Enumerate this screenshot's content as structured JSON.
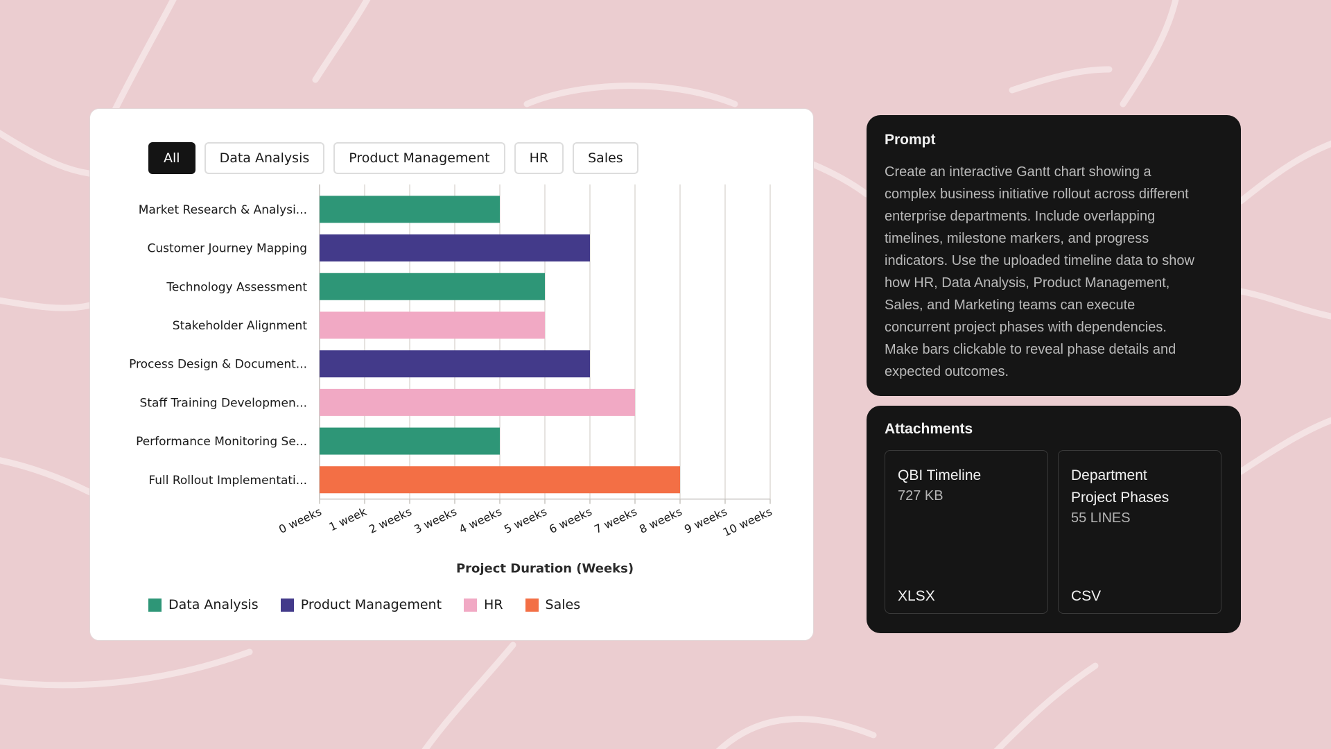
{
  "filters": [
    "All",
    "Data Analysis",
    "Product Management",
    "HR",
    "Sales"
  ],
  "colors": {
    "Data Analysis": "#2e9677",
    "Product Management": "#433a8a",
    "HR": "#f1a9c4",
    "Sales": "#f36f45"
  },
  "chart_data": {
    "type": "bar",
    "orientation": "horizontal",
    "title": "",
    "xlabel": "Project Duration (Weeks)",
    "ylabel": "",
    "xlim": [
      0,
      10
    ],
    "grid": true,
    "legend_position": "bottom-left",
    "x_ticks": [
      "0 weeks",
      "1 week",
      "2 weeks",
      "3 weeks",
      "4 weeks",
      "5 weeks",
      "6 weeks",
      "7 weeks",
      "8 weeks",
      "9 weeks",
      "10 weeks"
    ],
    "categories": [
      "Market Research & Analysi...",
      "Customer Journey Mapping",
      "Technology Assessment",
      "Stakeholder Alignment",
      "Process Design & Document...",
      "Staff Training Developmen...",
      "Performance Monitoring Se...",
      "Full Rollout Implementati..."
    ],
    "values": [
      4,
      6,
      5,
      5,
      6,
      7,
      4,
      8
    ],
    "departments": [
      "Data Analysis",
      "Product Management",
      "Data Analysis",
      "HR",
      "Product Management",
      "HR",
      "Data Analysis",
      "Sales"
    ],
    "legend": [
      "Data Analysis",
      "Product Management",
      "HR",
      "Sales"
    ]
  },
  "prompt": {
    "heading": "Prompt",
    "lines": [
      "Create an interactive Gantt chart showing a",
      "complex business initiative rollout across different",
      "enterprise departments. Include overlapping",
      "timelines, milestone markers, and progress",
      "indicators. Use the uploaded timeline data to show",
      "how HR, Data Analysis, Product Management,",
      "Sales, and Marketing teams can execute",
      "concurrent project phases with dependencies.",
      "Make bars clickable to reveal phase details and",
      "expected outcomes."
    ]
  },
  "attachments": {
    "heading": "Attachments",
    "items": [
      {
        "name_lines": [
          "QBI Timeline"
        ],
        "size": "727 KB",
        "type": "XLSX"
      },
      {
        "name_lines": [
          "Department",
          "Project Phases"
        ],
        "size": "55 LINES",
        "type": "CSV"
      }
    ]
  }
}
